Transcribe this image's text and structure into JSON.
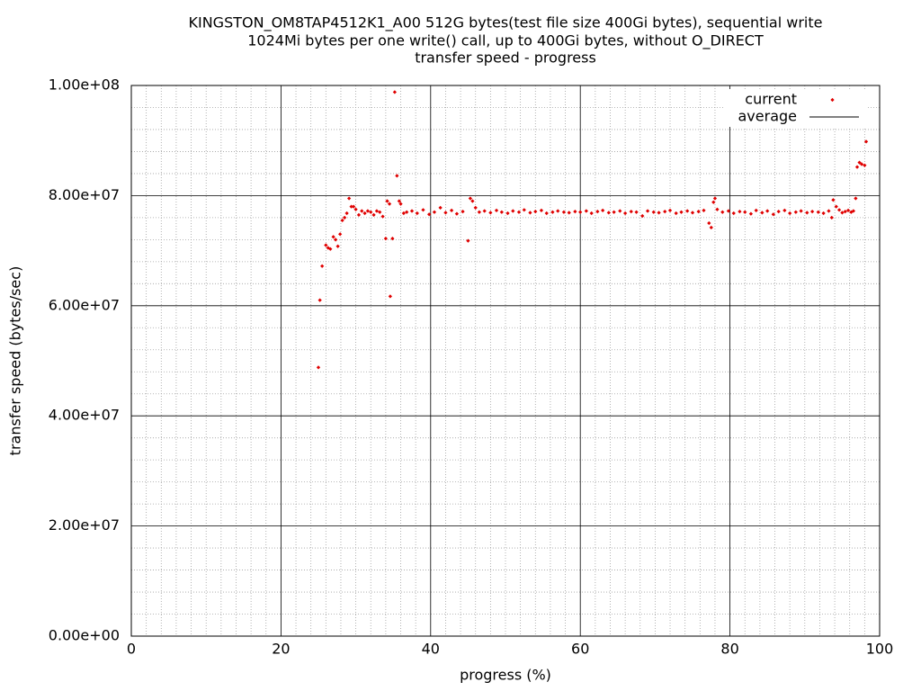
{
  "chart_data": {
    "type": "scatter",
    "title": "KINGSTON_OM8TAP4512K1_A00 512G bytes(test file size 400Gi bytes), sequential write",
    "subtitle": "1024Mi bytes per one write() call, up to 400Gi bytes, without O_DIRECT",
    "subtitle2": "transfer speed - progress",
    "x_label": "progress (%)",
    "y_label": "transfer speed (bytes/sec)",
    "xlim": [
      0,
      100
    ],
    "ylim": [
      0,
      100000000
    ],
    "xticks": [
      0,
      20,
      40,
      60,
      80,
      100
    ],
    "yticks": [
      {
        "value": 0,
        "label": "0.00e+00"
      },
      {
        "value": 20000000,
        "label": "2.00e+07"
      },
      {
        "value": 40000000,
        "label": "4.00e+07"
      },
      {
        "value": 60000000,
        "label": "6.00e+07"
      },
      {
        "value": 80000000,
        "label": "8.00e+07"
      },
      {
        "value": 100000000,
        "label": "1.00e+08"
      }
    ],
    "grid": true,
    "minor_grid": true,
    "legend": "top-right",
    "series": [
      {
        "name": "current",
        "color": "#e00000",
        "x": [
          25.0,
          25.2,
          25.5,
          26.0,
          26.3,
          26.6,
          27.0,
          27.3,
          27.6,
          27.9,
          28.2,
          28.5,
          28.8,
          29.1,
          29.4,
          29.7,
          30.0,
          30.4,
          30.8,
          31.2,
          31.6,
          32.0,
          32.4,
          32.8,
          33.2,
          33.6,
          34.0,
          34.2,
          34.5,
          34.6,
          34.9,
          35.2,
          35.5,
          35.8,
          36.0,
          36.4,
          36.8,
          37.5,
          38.2,
          39.0,
          39.8,
          40.5,
          41.3,
          42.0,
          42.8,
          43.5,
          44.3,
          45.0,
          45.3,
          45.6,
          46.0,
          46.5,
          47.2,
          48.0,
          48.8,
          49.5,
          50.3,
          51.0,
          51.8,
          52.5,
          53.3,
          54.0,
          54.8,
          55.5,
          56.3,
          57.0,
          57.8,
          58.5,
          59.3,
          60.0,
          60.8,
          61.5,
          62.3,
          63.0,
          63.8,
          64.5,
          65.3,
          66.0,
          66.8,
          67.5,
          68.3,
          69.0,
          69.8,
          70.5,
          71.3,
          72.0,
          72.8,
          73.5,
          74.3,
          75.0,
          75.8,
          76.5,
          77.2,
          77.5,
          77.8,
          78.0,
          78.3,
          79.0,
          79.8,
          80.5,
          81.3,
          82.0,
          82.8,
          83.5,
          84.3,
          85.0,
          85.8,
          86.5,
          87.3,
          88.0,
          88.8,
          89.5,
          90.3,
          91.0,
          91.8,
          92.5,
          93.2,
          93.6,
          93.8,
          94.2,
          94.6,
          95.0,
          95.4,
          95.8,
          96.2,
          96.5,
          96.8,
          97.0,
          97.3,
          97.6,
          98.0,
          98.2
        ],
        "values": [
          48800000,
          61000000,
          67200000,
          71000000,
          70500000,
          70300000,
          72500000,
          72000000,
          70800000,
          73000000,
          75500000,
          76000000,
          76800000,
          79500000,
          78000000,
          78000000,
          77500000,
          76500000,
          77200000,
          76800000,
          77200000,
          77000000,
          76500000,
          77200000,
          77000000,
          76200000,
          72200000,
          79000000,
          78500000,
          61700000,
          72200000,
          98800000,
          83600000,
          79000000,
          78500000,
          76800000,
          77000000,
          77200000,
          76800000,
          77400000,
          76600000,
          77000000,
          77800000,
          76900000,
          77300000,
          76700000,
          77100000,
          71800000,
          79500000,
          79000000,
          77800000,
          77000000,
          77200000,
          76900000,
          77300000,
          77000000,
          76800000,
          77200000,
          77000000,
          77400000,
          76900000,
          77100000,
          77300000,
          76800000,
          77000000,
          77200000,
          77000000,
          76900000,
          77100000,
          77000000,
          77200000,
          76800000,
          77100000,
          77300000,
          76900000,
          77000000,
          77200000,
          76800000,
          77100000,
          77000000,
          76300000,
          77200000,
          77000000,
          76900000,
          77100000,
          77300000,
          76800000,
          77000000,
          77200000,
          76900000,
          77100000,
          77300000,
          75000000,
          74200000,
          78800000,
          79500000,
          77500000,
          77000000,
          77200000,
          76800000,
          77100000,
          77000000,
          76700000,
          77300000,
          76900000,
          77200000,
          76600000,
          77100000,
          77300000,
          76800000,
          77000000,
          77200000,
          76900000,
          77100000,
          77000000,
          76800000,
          77200000,
          76000000,
          79200000,
          78000000,
          77400000,
          76900000,
          77100000,
          77300000,
          77000000,
          77200000,
          79500000,
          85200000,
          86000000,
          85700000,
          85500000,
          89800000
        ]
      },
      {
        "name": "average",
        "color": "#000000",
        "x": [],
        "values": []
      }
    ]
  }
}
